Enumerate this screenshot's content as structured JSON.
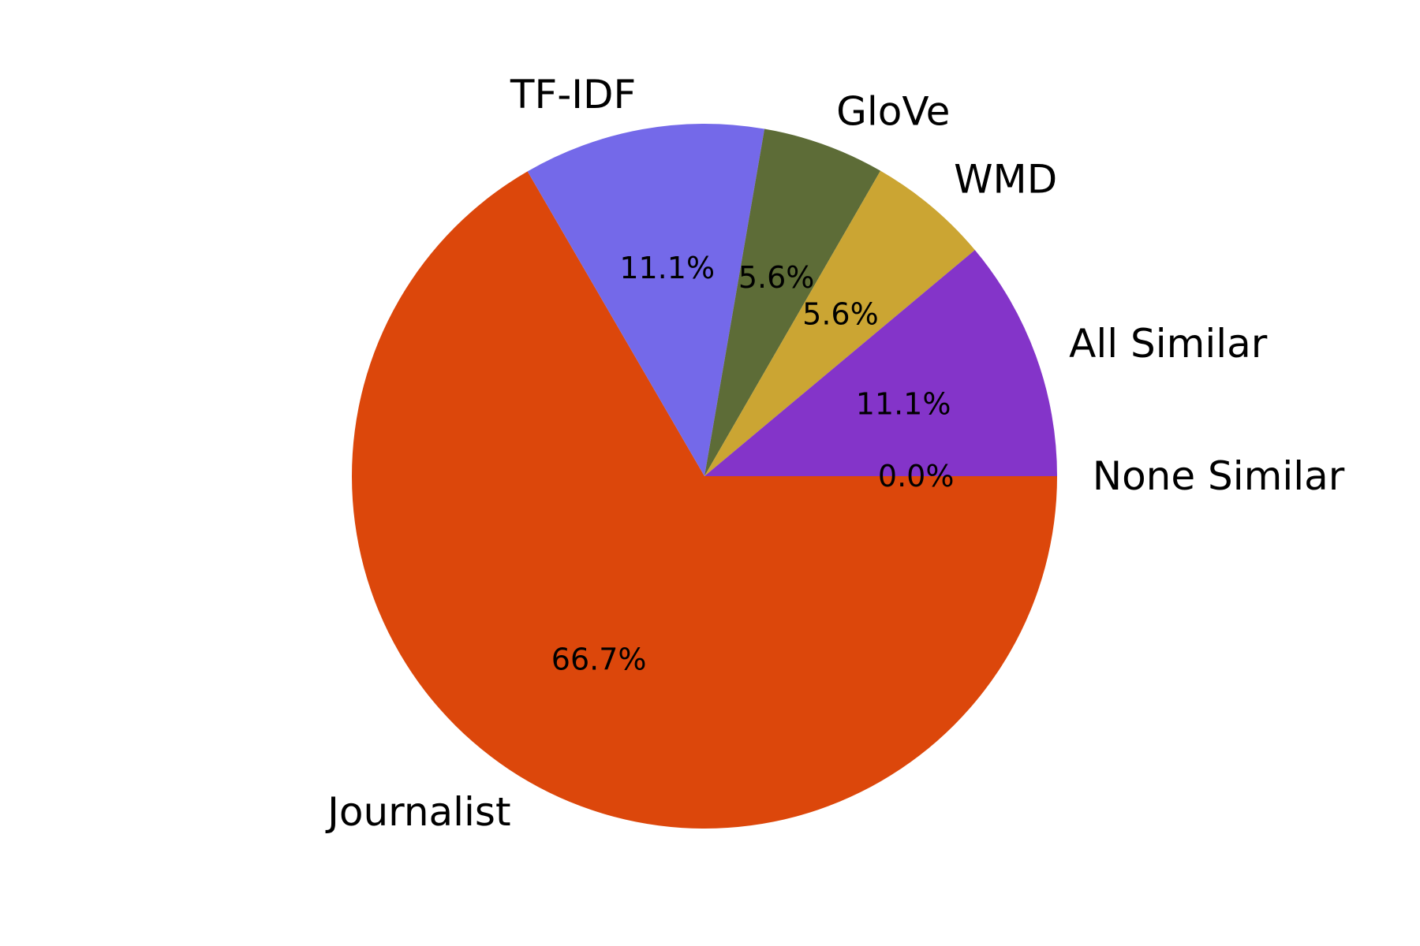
{
  "chart_data": {
    "type": "pie",
    "title": "",
    "categories": [
      "Journalist",
      "TF-IDF",
      "GloVe",
      "WMD",
      "All Similar",
      "None Similar"
    ],
    "values": [
      66.7,
      11.1,
      5.6,
      5.6,
      11.1,
      0.0
    ],
    "value_labels": [
      "66.7%",
      "11.1%",
      "5.6%",
      "5.6%",
      "11.1%",
      "0.0%"
    ],
    "colors": [
      "#dc470b",
      "#7469e9",
      "#5d6c37",
      "#cba533",
      "#8434c9",
      "#4a7cc9"
    ],
    "start_angle_deg": 0,
    "direction": "clockwise-on-screen",
    "legend": "none"
  }
}
